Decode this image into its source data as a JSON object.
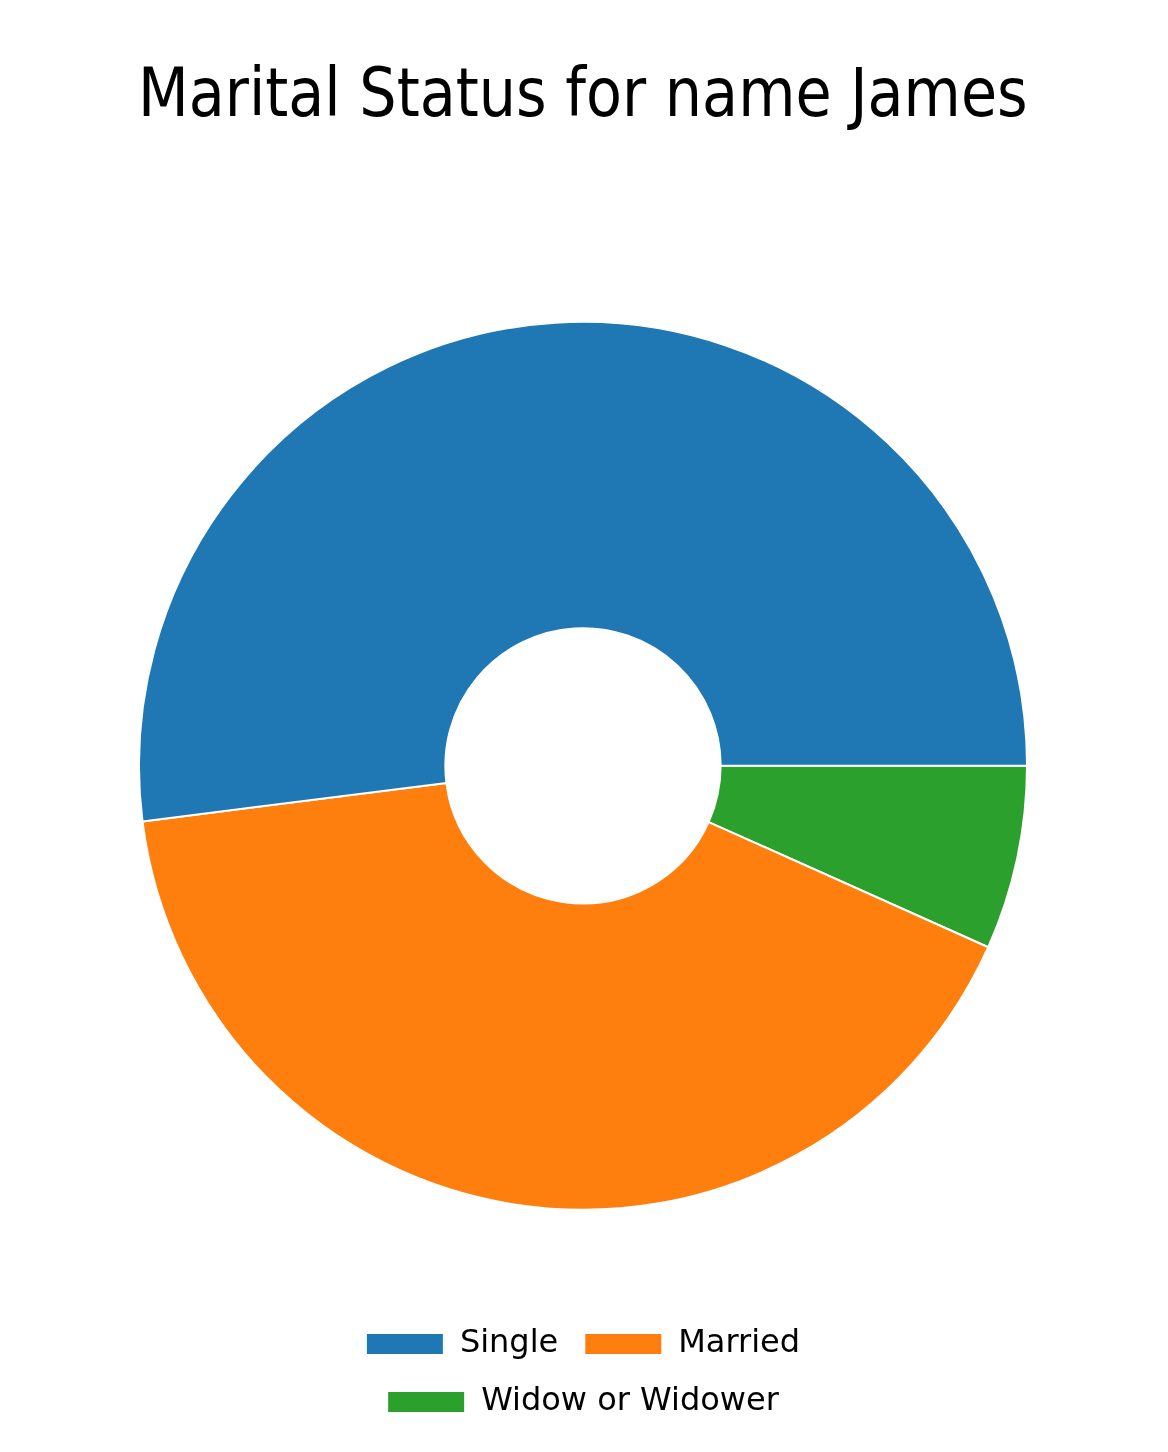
{
  "chart_data": {
    "type": "donut",
    "title": "Marital Status for name James",
    "categories": [
      "Single",
      "Married",
      "Widow or Widower"
    ],
    "values": [
      52.0,
      41.3,
      6.7
    ],
    "colors": [
      "#1f77b4",
      "#ff7f0e",
      "#2ca02c"
    ],
    "legend": "bottom"
  }
}
